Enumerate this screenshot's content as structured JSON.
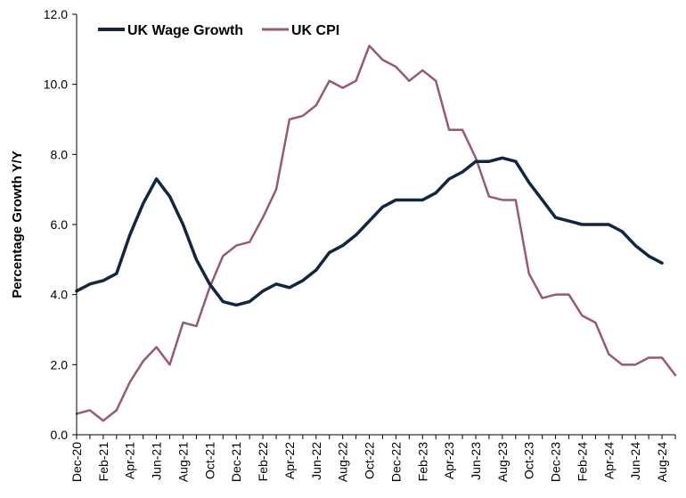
{
  "chart_data": {
    "type": "line",
    "title": "",
    "xlabel": "",
    "ylabel": "Percentage Growth Y/Y",
    "ylim": [
      0,
      12
    ],
    "yticks": [
      "0.0",
      "2.0",
      "4.0",
      "6.0",
      "8.0",
      "10.0",
      "12.0"
    ],
    "x": [
      "Dec-20",
      "Jan-21",
      "Feb-21",
      "Mar-21",
      "Apr-21",
      "May-21",
      "Jun-21",
      "Jul-21",
      "Aug-21",
      "Sep-21",
      "Oct-21",
      "Nov-21",
      "Dec-21",
      "Jan-22",
      "Feb-22",
      "Mar-22",
      "Apr-22",
      "May-22",
      "Jun-22",
      "Jul-22",
      "Aug-22",
      "Sep-22",
      "Oct-22",
      "Nov-22",
      "Dec-22",
      "Jan-23",
      "Feb-23",
      "Mar-23",
      "Apr-23",
      "May-23",
      "Jun-23",
      "Jul-23",
      "Aug-23",
      "Sep-23",
      "Oct-23",
      "Nov-23",
      "Dec-23",
      "Jan-24",
      "Feb-24",
      "Mar-24",
      "Apr-24",
      "May-24",
      "Jun-24",
      "Jul-24",
      "Aug-24",
      "Sep-24"
    ],
    "xtick_labels": [
      "Dec-20",
      "Feb-21",
      "Apr-21",
      "Jun-21",
      "Aug-21",
      "Oct-21",
      "Dec-21",
      "Feb-22",
      "Apr-22",
      "Jun-22",
      "Aug-22",
      "Oct-22",
      "Dec-22",
      "Feb-23",
      "Apr-23",
      "Jun-23",
      "Aug-23",
      "Oct-23",
      "Dec-23",
      "Feb-24",
      "Apr-24",
      "Jun-24",
      "Aug-24"
    ],
    "series": [
      {
        "name": "UK Wage Growth",
        "color": "#12263f",
        "values": [
          4.1,
          4.3,
          4.4,
          4.6,
          5.7,
          6.6,
          7.3,
          6.8,
          6.0,
          5.0,
          4.3,
          3.8,
          3.7,
          3.8,
          4.1,
          4.3,
          4.2,
          4.4,
          4.7,
          5.2,
          5.4,
          5.7,
          6.1,
          6.5,
          6.7,
          6.7,
          6.7,
          6.9,
          7.3,
          7.5,
          7.8,
          7.8,
          7.9,
          7.8,
          7.2,
          6.7,
          6.2,
          6.1,
          6.0,
          6.0,
          6.0,
          5.8,
          5.4,
          5.1,
          4.9,
          null
        ]
      },
      {
        "name": "UK CPI",
        "color": "#9a5a6e",
        "values": [
          0.6,
          0.7,
          0.4,
          0.7,
          1.5,
          2.1,
          2.5,
          2.0,
          3.2,
          3.1,
          4.2,
          5.1,
          5.4,
          5.5,
          6.2,
          7.0,
          9.0,
          9.1,
          9.4,
          10.1,
          9.9,
          10.1,
          11.1,
          10.7,
          10.5,
          10.1,
          10.4,
          10.1,
          8.7,
          8.7,
          7.9,
          6.8,
          6.7,
          6.7,
          4.6,
          3.9,
          4.0,
          4.0,
          3.4,
          3.2,
          2.3,
          2.0,
          2.0,
          2.2,
          2.2,
          1.7
        ]
      }
    ],
    "legend": "top-left",
    "grid": false
  }
}
